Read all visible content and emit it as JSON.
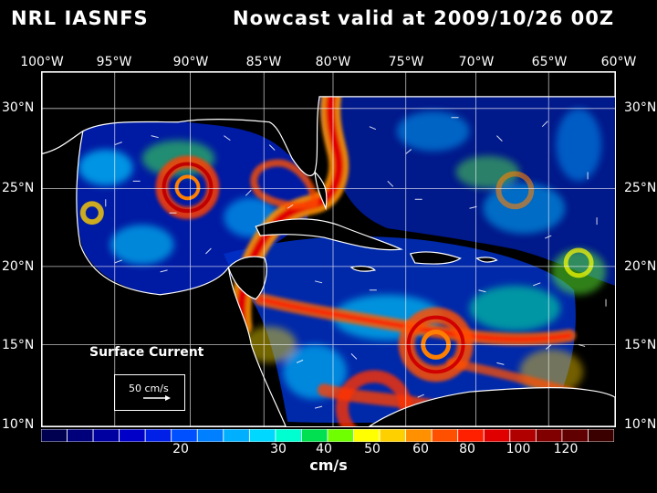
{
  "header": {
    "source": "NRL IASNFS",
    "product": "Nowcast",
    "valid": "valid at 2009/10/26 00Z"
  },
  "axes": {
    "lon_labels": [
      "100°W",
      "95°W",
      "90°W",
      "85°W",
      "80°W",
      "75°W",
      "70°W",
      "65°W",
      "60°W"
    ],
    "lat_labels": [
      "30°N",
      "25°N",
      "20°N",
      "15°N",
      "10°N"
    ]
  },
  "map": {
    "variable_label": "Surface Current",
    "reference_vector_label": "50 cm/s",
    "extent_deg": {
      "lon": [
        -100,
        -60
      ],
      "lat": [
        10,
        31.5
      ]
    }
  },
  "colorbar": {
    "unit": "cm/s",
    "tick_labels": [
      "20",
      "30",
      "40",
      "50",
      "60",
      "80",
      "100",
      "120"
    ],
    "colors": [
      "#000050",
      "#00007a",
      "#0000a0",
      "#0000c8",
      "#0020e8",
      "#0050ff",
      "#0080ff",
      "#00b0ff",
      "#00d8ff",
      "#00ffd0",
      "#00e050",
      "#70ff00",
      "#ffff00",
      "#ffd000",
      "#ff9000",
      "#ff5000",
      "#ff2000",
      "#e00000",
      "#b00000",
      "#800000",
      "#600000",
      "#3a0000"
    ]
  }
}
